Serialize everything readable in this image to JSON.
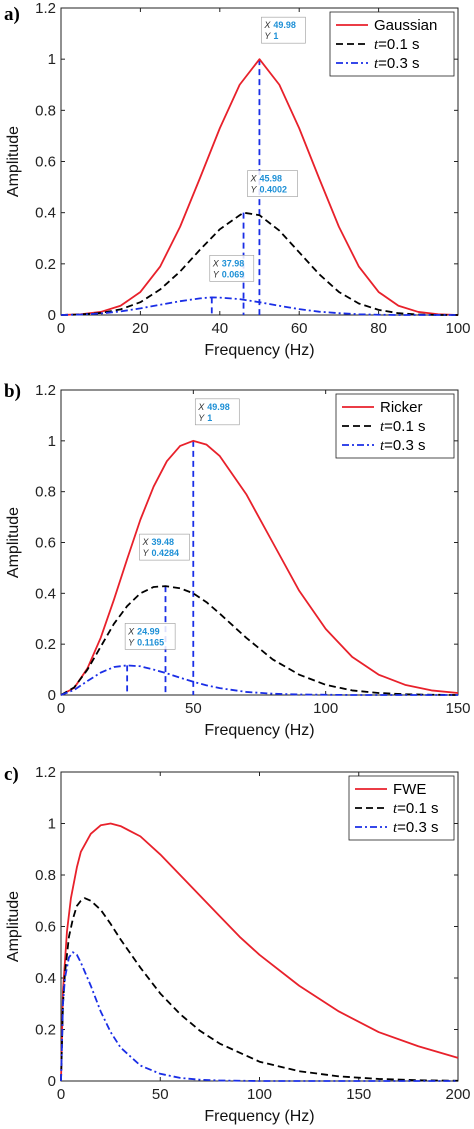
{
  "chart_data": [
    {
      "type": "line",
      "panel_label": "a)",
      "xlabel": "Frequency (Hz)",
      "ylabel": "Amplitude",
      "xlim": [
        0,
        100
      ],
      "ylim": [
        0,
        1.2
      ],
      "xticks": [
        0,
        20,
        40,
        60,
        80,
        100
      ],
      "yticks": [
        0,
        0.2,
        0.4,
        0.6,
        0.8,
        1,
        1.2
      ],
      "ytick_labels": [
        "0",
        "0.2",
        "0.4",
        "0.6",
        "0.8",
        "1",
        "1.2"
      ],
      "grid": false,
      "legend": "top-right",
      "series": [
        {
          "name": "Gaussian",
          "color": "#e8212b",
          "style": "solid",
          "x": [
            0,
            5,
            10,
            15,
            20,
            25,
            30,
            35,
            40,
            45,
            50,
            55,
            60,
            65,
            70,
            75,
            80,
            85,
            90,
            95,
            100
          ],
          "y": [
            0.0,
            0.003,
            0.012,
            0.036,
            0.09,
            0.19,
            0.345,
            0.535,
            0.73,
            0.9,
            1.0,
            0.9,
            0.73,
            0.535,
            0.345,
            0.19,
            0.09,
            0.036,
            0.012,
            0.003,
            0.0
          ]
        },
        {
          "name": "t=0.1 s",
          "name_prefix": "t",
          "name_suffix": "=0.1 s",
          "color": "#000000",
          "style": "dashed",
          "x": [
            0,
            5,
            10,
            15,
            20,
            25,
            30,
            35,
            40,
            45,
            46,
            50,
            55,
            60,
            65,
            70,
            75,
            80,
            85,
            90,
            95,
            100
          ],
          "y": [
            0.0,
            0.002,
            0.008,
            0.022,
            0.05,
            0.1,
            0.17,
            0.255,
            0.335,
            0.39,
            0.4,
            0.39,
            0.33,
            0.245,
            0.16,
            0.09,
            0.045,
            0.02,
            0.007,
            0.002,
            0.0,
            0.0
          ]
        },
        {
          "name": "t=0.3 s",
          "name_prefix": "t",
          "name_suffix": "=0.3 s",
          "color": "#1a2ee6",
          "style": "dashdot",
          "x": [
            0,
            5,
            10,
            15,
            20,
            25,
            30,
            35,
            38,
            40,
            45,
            50,
            55,
            60,
            65,
            70,
            75,
            80,
            85,
            90,
            95,
            100
          ],
          "y": [
            0.0,
            0.002,
            0.006,
            0.014,
            0.026,
            0.04,
            0.054,
            0.065,
            0.069,
            0.068,
            0.062,
            0.05,
            0.036,
            0.023,
            0.013,
            0.007,
            0.003,
            0.001,
            0.0,
            0.0,
            0.0,
            0.0
          ]
        }
      ],
      "datatips": [
        {
          "x_text": "49.98",
          "y_text": "1",
          "x": 49.98,
          "y": 1,
          "color": "#1a2ee6"
        },
        {
          "x_text": "45.98",
          "y_text": "0.4002",
          "x": 45.98,
          "y": 0.4002,
          "color": "#1a2ee6"
        },
        {
          "x_text": "37.98",
          "y_text": "0.069",
          "x": 37.98,
          "y": 0.069,
          "color": "#1a2ee6"
        }
      ]
    },
    {
      "type": "line",
      "panel_label": "b)",
      "xlabel": "Frequency (Hz)",
      "ylabel": "Amplitude",
      "xlim": [
        0,
        150
      ],
      "ylim": [
        0,
        1.2
      ],
      "xticks": [
        0,
        50,
        100,
        150
      ],
      "yticks": [
        0,
        0.2,
        0.4,
        0.6,
        0.8,
        1,
        1.2
      ],
      "ytick_labels": [
        "0",
        "0.2",
        "0.4",
        "0.6",
        "0.8",
        "1",
        "1.2"
      ],
      "grid": false,
      "legend": "top-right",
      "series": [
        {
          "name": "Ricker",
          "color": "#e8212b",
          "style": "solid",
          "x": [
            0,
            5,
            10,
            15,
            20,
            25,
            30,
            35,
            40,
            45,
            50,
            55,
            60,
            70,
            80,
            90,
            100,
            110,
            120,
            130,
            140,
            150
          ],
          "y": [
            0.0,
            0.028,
            0.105,
            0.225,
            0.375,
            0.535,
            0.69,
            0.82,
            0.92,
            0.98,
            1.0,
            0.985,
            0.94,
            0.79,
            0.6,
            0.41,
            0.26,
            0.15,
            0.08,
            0.04,
            0.018,
            0.008
          ]
        },
        {
          "name": "t=0.1 s",
          "name_prefix": "t",
          "name_suffix": "=0.1 s",
          "color": "#000000",
          "style": "dashed",
          "x": [
            0,
            5,
            10,
            15,
            20,
            25,
            30,
            35,
            39.48,
            45,
            50,
            55,
            60,
            70,
            80,
            90,
            100,
            110,
            120,
            130,
            140,
            150
          ],
          "y": [
            0.0,
            0.03,
            0.1,
            0.19,
            0.28,
            0.35,
            0.4,
            0.425,
            0.4284,
            0.42,
            0.4,
            0.365,
            0.32,
            0.225,
            0.14,
            0.08,
            0.04,
            0.018,
            0.008,
            0.003,
            0.001,
            0.0
          ]
        },
        {
          "name": "t=0.3 s",
          "name_prefix": "t",
          "name_suffix": "=0.3 s",
          "color": "#1a2ee6",
          "style": "dashdot",
          "x": [
            0,
            5,
            10,
            15,
            20,
            24.99,
            30,
            35,
            40,
            45,
            50,
            55,
            60,
            70,
            80,
            90,
            100,
            110,
            120,
            130,
            140,
            150
          ],
          "y": [
            0.0,
            0.02,
            0.055,
            0.088,
            0.11,
            0.1165,
            0.113,
            0.1,
            0.085,
            0.068,
            0.052,
            0.038,
            0.027,
            0.012,
            0.005,
            0.002,
            0.001,
            0.0,
            0.0,
            0.0,
            0.0,
            0.0
          ]
        }
      ],
      "datatips": [
        {
          "x_text": "49.98",
          "y_text": "1",
          "x": 49.98,
          "y": 1,
          "color": "#1a2ee6"
        },
        {
          "x_text": "39.48",
          "y_text": "0.4284",
          "x": 39.48,
          "y": 0.4284,
          "color": "#1a2ee6"
        },
        {
          "x_text": "24.99",
          "y_text": "0.1165",
          "x": 24.99,
          "y": 0.1165,
          "color": "#1a2ee6"
        }
      ]
    },
    {
      "type": "line",
      "panel_label": "c)",
      "xlabel": "Frequency (Hz)",
      "ylabel": "Amplitude",
      "xlim": [
        0,
        200
      ],
      "ylim": [
        0,
        1.2
      ],
      "xticks": [
        0,
        50,
        100,
        150,
        200
      ],
      "xtick_labels": [
        "0",
        "50",
        "100",
        "150",
        "200"
      ],
      "yticks": [
        0,
        0.2,
        0.4,
        0.6,
        0.8,
        1,
        1.2
      ],
      "ytick_labels": [
        "0",
        "0.2",
        "0.4",
        "0.6",
        "0.8",
        "1",
        "1.2"
      ],
      "grid": false,
      "legend": "top-right",
      "series": [
        {
          "name": "FWE",
          "color": "#e8212b",
          "style": "solid",
          "x": [
            0,
            1,
            3,
            5,
            8,
            10,
            15,
            20,
            25,
            30,
            40,
            50,
            60,
            70,
            80,
            90,
            100,
            120,
            140,
            160,
            180,
            200
          ],
          "y": [
            0.0,
            0.35,
            0.58,
            0.71,
            0.83,
            0.89,
            0.96,
            0.993,
            1.0,
            0.99,
            0.95,
            0.88,
            0.8,
            0.72,
            0.64,
            0.56,
            0.49,
            0.37,
            0.27,
            0.19,
            0.135,
            0.09
          ]
        },
        {
          "name": "t=0.1 s",
          "name_prefix": "t",
          "name_suffix": "=0.1 s",
          "color": "#000000",
          "style": "dashed",
          "x": [
            0,
            1,
            2,
            4,
            6,
            8,
            10,
            12,
            15,
            20,
            25,
            30,
            40,
            50,
            60,
            70,
            80,
            100,
            120,
            140,
            160,
            180,
            200
          ],
          "y": [
            0.0,
            0.3,
            0.42,
            0.56,
            0.63,
            0.68,
            0.7,
            0.71,
            0.7,
            0.665,
            0.61,
            0.55,
            0.44,
            0.34,
            0.26,
            0.195,
            0.145,
            0.075,
            0.038,
            0.018,
            0.008,
            0.003,
            0.001
          ]
        },
        {
          "name": "t=0.3 s",
          "name_prefix": "t",
          "name_suffix": "=0.3 s",
          "color": "#1a2ee6",
          "style": "dashdot",
          "x": [
            0,
            1,
            2,
            4,
            6,
            8,
            10,
            15,
            20,
            25,
            30,
            40,
            50,
            60,
            70,
            80,
            100,
            120,
            150,
            200
          ],
          "y": [
            0.0,
            0.3,
            0.4,
            0.48,
            0.5,
            0.49,
            0.46,
            0.37,
            0.27,
            0.19,
            0.13,
            0.06,
            0.028,
            0.012,
            0.005,
            0.002,
            0.0,
            0.0,
            0.0,
            0.0
          ]
        }
      ],
      "datatips": []
    }
  ]
}
